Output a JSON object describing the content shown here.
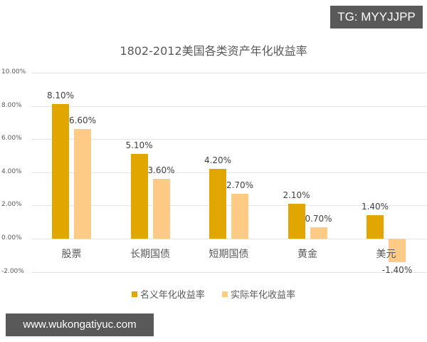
{
  "watermarks": {
    "top_right": "TG: MYYJJPP",
    "bottom_left": "www.wukongatiyuc.com"
  },
  "colors": {
    "nominal": "#E2A600",
    "real": "#FDCB85"
  },
  "chart_data": {
    "type": "bar",
    "title": "1802-2012美国各类资产年化收益率",
    "xlabel": "",
    "ylabel": "",
    "categories": [
      "股票",
      "长期国债",
      "短期国债",
      "黄金",
      "美元"
    ],
    "series": [
      {
        "name": "名义年化收益率",
        "values": [
          8.1,
          5.1,
          4.2,
          2.1,
          1.4
        ],
        "labels": [
          "8.10%",
          "5.10%",
          "4.20%",
          "2.10%",
          "1.40%"
        ]
      },
      {
        "name": "实际年化收益率",
        "values": [
          6.6,
          3.6,
          2.7,
          0.7,
          -1.4
        ],
        "labels": [
          "6.60%",
          "3.60%",
          "2.70%",
          "0.70%",
          "-1.40%"
        ]
      }
    ],
    "yticks": [
      "10.00%",
      "8.00%",
      "6.00%",
      "4.00%",
      "2.00%",
      "0.00%",
      "-2.00%"
    ],
    "ylim": [
      -2,
      10
    ],
    "grid": true,
    "legend_position": "bottom",
    "unit": "%"
  }
}
